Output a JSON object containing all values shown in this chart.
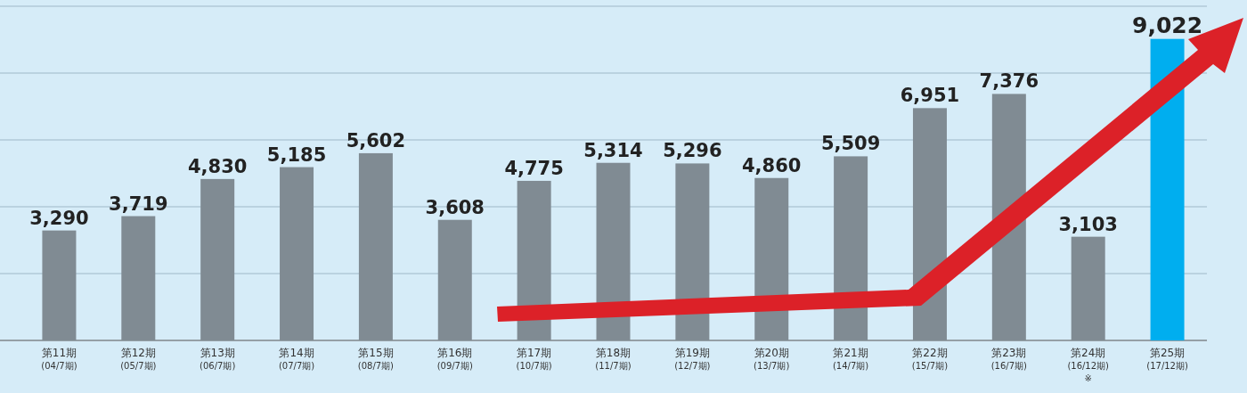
{
  "chart_data": {
    "type": "bar",
    "categories": [
      "第11期\n(04/7期)",
      "第12期\n(05/7期)",
      "第13期\n(06/7期)",
      "第14期\n(07/7期)",
      "第15期\n(08/7期)",
      "第16期\n(09/7期)",
      "第17期\n(10/7期)",
      "第18期\n(11/7期)",
      "第19期\n(12/7期)",
      "第20期\n(13/7期)",
      "第21期\n(14/7期)",
      "第22期\n(15/7期)",
      "第23期\n(16/7期)",
      "第24期\n(16/12期)\n※",
      "第25期\n(17/12期)"
    ],
    "values": [
      3290,
      3719,
      4830,
      5185,
      5602,
      3608,
      4775,
      5314,
      5296,
      4860,
      5509,
      6951,
      7376,
      3103,
      9022
    ],
    "colors": [
      "#808b93",
      "#808b93",
      "#808b93",
      "#808b93",
      "#808b93",
      "#808b93",
      "#808b93",
      "#808b93",
      "#808b93",
      "#808b93",
      "#808b93",
      "#808b93",
      "#808b93",
      "#808b93",
      "#00aeef"
    ],
    "value_labels": [
      "3,290",
      "3,719",
      "4,830",
      "5,185",
      "5,602",
      "3,608",
      "4,775",
      "5,314",
      "5,296",
      "4,860",
      "5,509",
      "6,951",
      "7,376",
      "3,103",
      "9,022"
    ],
    "ylim": [
      0,
      10000
    ],
    "yticks": [
      {
        "value": 0,
        "label": null
      },
      {
        "value": 2000,
        "label": null
      },
      {
        "value": 4000,
        "label": null
      },
      {
        "value": 6000,
        "label": null
      },
      {
        "value": 8000,
        "label": null
      },
      {
        "value": 10000,
        "label": null
      }
    ],
    "grid": "y",
    "tick_labels": "x"
  }
}
